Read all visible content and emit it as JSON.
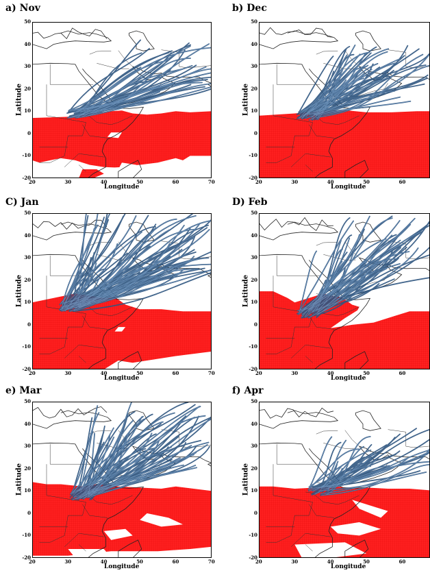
{
  "figure": {
    "y_axis_label": "Latitude",
    "x_axis_label": "Longitude",
    "lon_ticks": [
      "20",
      "30",
      "40",
      "50",
      "60",
      "70"
    ],
    "lat_ticks": [
      "50",
      "40",
      "30",
      "20",
      "10",
      "0",
      "-10",
      "-20"
    ],
    "lon_range": [
      20,
      70
    ],
    "lat_range": [
      -20,
      50
    ],
    "rain_color": "#ff2020",
    "trajectory_color": "#2f5680",
    "coast_color": "#222222"
  },
  "panels": [
    {
      "label": "a) Nov",
      "origin": [
        32,
        9
      ],
      "spread_lon": [
        50,
        72
      ],
      "spread_lat": [
        18,
        42
      ],
      "count": 40
    },
    {
      "label": "b) Dec",
      "origin": [
        33,
        8
      ],
      "spread_lon": [
        40,
        68
      ],
      "spread_lat": [
        14,
        40
      ],
      "count": 55
    },
    {
      "label": "C) Jan",
      "origin": [
        30,
        8
      ],
      "spread_lon": [
        34,
        72
      ],
      "spread_lat": [
        20,
        52
      ],
      "count": 80
    },
    {
      "label": "D) Feb",
      "origin": [
        33,
        5
      ],
      "spread_lon": [
        36,
        72
      ],
      "spread_lat": [
        18,
        50
      ],
      "count": 55
    },
    {
      "label": "e) Mar",
      "origin": [
        33,
        8
      ],
      "spread_lon": [
        36,
        72
      ],
      "spread_lat": [
        20,
        50
      ],
      "count": 65
    },
    {
      "label": "f) Apr",
      "origin": [
        36,
        10
      ],
      "spread_lon": [
        40,
        70
      ],
      "spread_lat": [
        18,
        40
      ],
      "count": 40
    }
  ]
}
